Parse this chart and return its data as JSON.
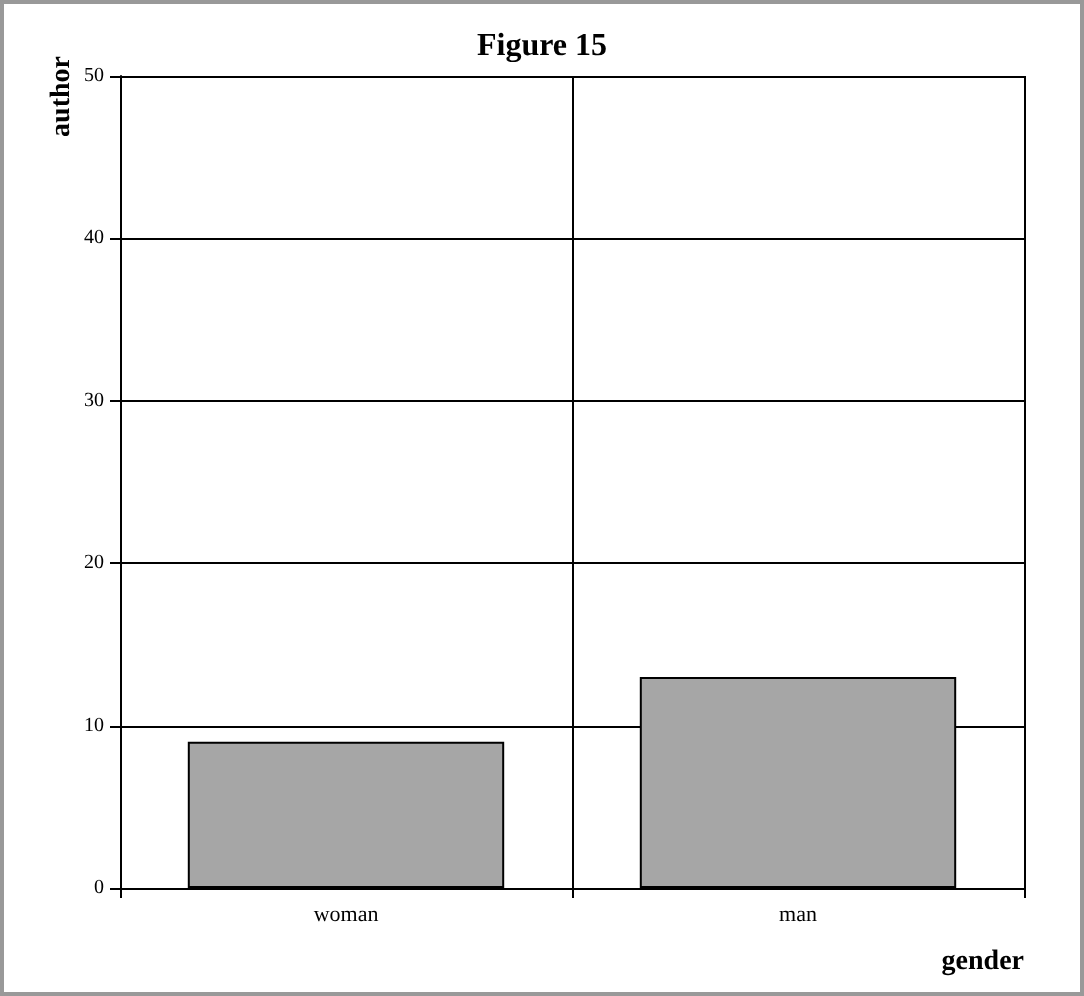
{
  "chart_data": {
    "type": "bar",
    "title": "Figure 15",
    "xlabel": "gender",
    "ylabel": "author",
    "categories": [
      "woman",
      "man"
    ],
    "series": [
      {
        "color": "#a6a6a6",
        "values": [
          9,
          13
        ]
      }
    ],
    "ylim": [
      0,
      50
    ],
    "yticks": [
      0,
      10,
      20,
      30,
      40,
      50
    ],
    "grid": true
  }
}
